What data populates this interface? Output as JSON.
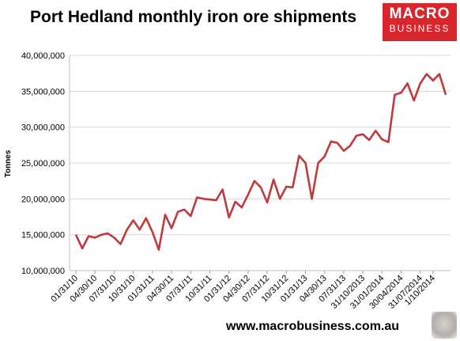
{
  "header": {
    "title": "Port Hedland monthly iron ore shipments"
  },
  "logo": {
    "line1": "MACRO",
    "line2": "BUSINESS"
  },
  "footer": {
    "url": "www.macrobusiness.com.au"
  },
  "colors": {
    "line": "#c0393c",
    "grid": "#d9d9d9",
    "logo_bg": "#d9262c"
  },
  "chart_data": {
    "type": "line",
    "title": "Port Hedland monthly iron ore shipments",
    "ylabel": "Tonnes",
    "xlabel": "",
    "ylim": [
      10000000,
      40000000
    ],
    "y_ticks": [
      "10,000,000",
      "15,000,000",
      "20,000,000",
      "25,000,000",
      "30,000,000",
      "35,000,000",
      "40,000,000"
    ],
    "y_tick_values": [
      10000000,
      15000000,
      20000000,
      25000000,
      30000000,
      35000000,
      40000000
    ],
    "x_tick_labels": [
      "01/31/10",
      "04/30/10",
      "07/31/10",
      "10/31/10",
      "01/31/11",
      "04/30/11",
      "07/31/11",
      "10/31/11",
      "01/31/12",
      "04/30/12",
      "07/31/12",
      "10/31/12",
      "01/31/13",
      "04/30/13",
      "07/31/13",
      "31/10/2013",
      "31/01/2014",
      "30/04/2014",
      "31/07/2014",
      "1/10/2014"
    ],
    "x_tick_indices": [
      0,
      3,
      6,
      9,
      12,
      15,
      18,
      21,
      24,
      27,
      30,
      33,
      36,
      39,
      42,
      45,
      48,
      51,
      54,
      56
    ],
    "grid": true,
    "legend": "none",
    "series": [
      {
        "values": [
          15000000,
          13100000,
          14800000,
          14600000,
          15000000,
          15200000,
          14600000,
          13700000,
          15700000,
          17000000,
          15700000,
          17300000,
          15400000,
          12900000,
          17800000,
          15900000,
          18200000,
          18500000,
          17600000,
          20200000,
          20000000,
          19900000,
          19800000,
          21300000,
          17400000,
          19600000,
          18800000,
          20600000,
          22500000,
          21600000,
          19500000,
          22700000,
          20000000,
          21700000,
          21600000,
          26000000,
          25000000,
          20000000,
          25000000,
          25900000,
          28000000,
          27800000,
          26700000,
          27400000,
          28800000,
          29000000,
          28200000,
          29500000,
          28300000,
          27900000,
          34500000,
          34800000,
          36100000,
          33700000,
          36100000,
          37400000,
          36500000,
          37400000,
          34500000
        ]
      }
    ]
  }
}
